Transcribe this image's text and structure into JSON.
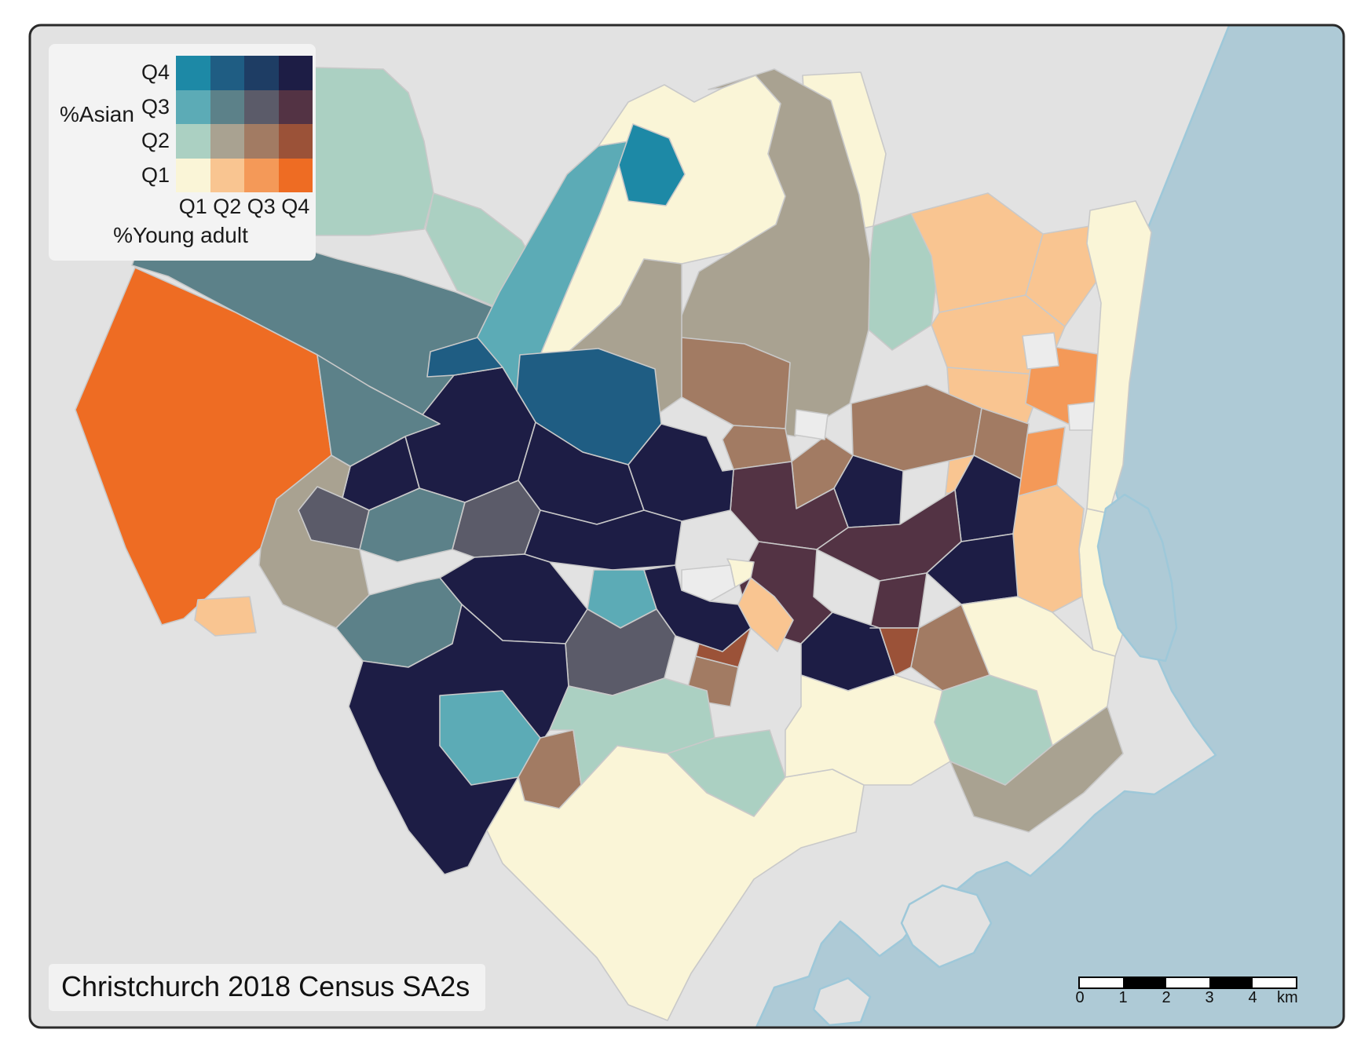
{
  "title": "Christchurch 2018 Census SA2s",
  "legend": {
    "y_axis_label": "%Asian",
    "x_axis_label": "%Young adult",
    "row_labels": [
      "Q4",
      "Q3",
      "Q2",
      "Q1"
    ],
    "col_labels": [
      "Q1",
      "Q2",
      "Q3",
      "Q4"
    ],
    "matrix": [
      [
        "#1d89a6",
        "#1f5d83",
        "#1e3d64",
        "#1d1d45"
      ],
      [
        "#5cabb6",
        "#5c8189",
        "#5b5b69",
        "#533344"
      ],
      [
        "#abd0c2",
        "#a9a291",
        "#a27b63",
        "#9b5238"
      ],
      [
        "#faf5d7",
        "#f9c591",
        "#f49958",
        "#ee6c23"
      ]
    ]
  },
  "scalebar": {
    "tick_labels": [
      "0",
      "1",
      "2",
      "3",
      "4"
    ],
    "unit": "km",
    "segments": [
      "#ffffff",
      "#000000",
      "#ffffff",
      "#000000",
      "#ffffff"
    ]
  },
  "map": {
    "page_bg": "#ffffff",
    "land_color": "#e2e2e2",
    "water_color": "#aecad6",
    "water_edge_color": "#9ec8d9",
    "region_border_color": "#c9c9c9",
    "na_color": "#ececec",
    "panel_edge_color": "#2a2a2a",
    "class_colors": {
      "q1q1": "#faf5d7",
      "q1q2": "#f9c591",
      "q1q3": "#f49958",
      "q1q4": "#ee6c23",
      "q2q1": "#abd0c2",
      "q2q2": "#a9a291",
      "q2q3": "#a27b63",
      "q2q4": "#9b5238",
      "q3q1": "#5cabb6",
      "q3q2": "#5c8189",
      "q3q3": "#5b5b69",
      "q3q4": "#533344",
      "q4q1": "#1d89a6",
      "q4q2": "#1f5d83",
      "q4q3": "#1e3d64",
      "q4q4": "#1d1d45",
      "na": "#ececec"
    },
    "water_shapes": {
      "ocean_and_harbour": "1566,30 1506,180 1462,290 1428,400 1405,500 1407,580 1425,640 1440,700 1452,760 1470,830 1492,880 1520,925 1548,962 1520,980 1470,1012 1432,1008 1394,1038 1352,1080 1312,1116 1282,1098 1244,1112 1210,1140 1176,1162 1150,1196 1120,1218 1092,1192 1070,1174 1046,1202 1030,1244 986,1258 962,1311 1713,1311 1713,30",
      "estuary": "1408,648 1432,630 1462,648 1480,690 1492,742 1498,800 1484,842 1452,836 1424,800 1406,744 1398,696"
    },
    "islands": [
      "1158,1152 1200,1128 1244,1140 1262,1176 1240,1214 1196,1232 1162,1204 1148,1176",
      "1044,1260 1080,1246 1108,1270 1096,1302 1056,1306 1036,1286"
    ],
    "regions": [
      {
        "c": "q3q2",
        "p": "168,338 196,262 270,288 350,306 430,330 510,350 580,372 650,400 706,434 688,500 640,542 560,540 470,492 404,452 300,398 214,352"
      },
      {
        "c": "q1q4",
        "p": "96,522 172,341 300,398 404,452 422,580 352,636 332,698 234,788 206,796 160,698 112,566"
      },
      {
        "c": "q1q2",
        "p": "252,764 318,760 326,806 274,810 248,790"
      },
      {
        "c": "q2q1",
        "p": "196,256 176,180 206,112 296,92 402,86 488,88 520,118 540,180 552,246 540,292 470,300 380,300 300,292 240,280"
      },
      {
        "c": "q2q1",
        "p": "552,246 612,266 664,306 698,366 706,432 652,400 582,370 542,292"
      },
      {
        "c": "q3q1",
        "p": "588,470 636,372 682,292 722,222 762,186 800,180 764,272 724,366 688,452 652,508 612,510"
      },
      {
        "c": "q1q1",
        "p": "762,186 800,130 846,108 884,130 920,112 962,96 994,132 978,196 1000,250 988,286 930,322 868,336 820,330 790,388 756,420 724,448 688,452 724,366 764,272 800,180"
      },
      {
        "c": "q4q1",
        "p": "806,158 852,176 872,222 848,262 800,256 788,210"
      },
      {
        "c": "q1q1",
        "p": "1022,96 1096,92 1128,196 1112,288 1056,300 1028,206"
      },
      {
        "c": "q2q1",
        "p": "1112,288 1160,272 1196,326 1186,414 1136,446 1106,420 1108,330"
      },
      {
        "c": "q2q2",
        "p": "902,114 986,88 1058,128 1094,248 1108,330 1106,420 1082,514 1012,556 934,542 868,506 856,432 890,346 988,286 1000,250 978,196 994,132 962,96 920,112"
      },
      {
        "c": "q2q2",
        "p": "724,448 756,420 790,388 820,330 868,336 868,506 820,540 762,536 716,498"
      },
      {
        "c": "q1q2",
        "p": "1160,272 1258,246 1328,298 1306,376 1196,398 1186,326"
      },
      {
        "c": "q1q2",
        "p": "1196,398 1306,376 1356,416 1330,478 1206,468 1186,414"
      },
      {
        "c": "q1q2",
        "p": "1206,468 1330,478 1302,556 1212,556"
      },
      {
        "c": "q1q2",
        "p": "1212,556 1302,556 1282,636 1204,628"
      },
      {
        "c": "q1q2",
        "p": "1328,298 1388,288 1398,356 1356,416 1306,376"
      },
      {
        "c": "q1q3",
        "p": "1330,440 1404,452 1428,520 1360,540 1306,514 1312,470"
      },
      {
        "c": "q1q3",
        "p": "1288,556 1356,544 1346,618 1282,636"
      },
      {
        "c": "na",
        "p": "1302,428 1342,424 1348,466 1308,470"
      },
      {
        "c": "na",
        "p": "1360,516 1396,512 1392,548 1362,548"
      },
      {
        "c": "q1q1",
        "p": "1388,268 1446,256 1466,296 1452,390 1438,488 1430,592 1412,654 1384,648 1390,560 1396,478 1402,386 1384,310"
      },
      {
        "c": "q1q1",
        "p": "1384,648 1412,654 1420,720 1436,788 1420,836 1392,828 1378,760 1374,700"
      },
      {
        "c": "q1q2",
        "p": "1204,628 1282,636 1346,618 1380,648 1374,700 1378,760 1340,780 1280,760 1220,720 1196,676"
      },
      {
        "c": "q2q3",
        "p": "868,430 948,438 1006,462 1000,546 934,542 868,506"
      },
      {
        "c": "q2q3",
        "p": "1084,514 1180,490 1250,520 1240,580 1150,600 1086,580"
      },
      {
        "c": "q2q3",
        "p": "1250,520 1310,540 1300,610 1240,580"
      },
      {
        "c": "q4q4",
        "p": "1086,580 1150,600 1146,668 1080,672 1062,622"
      },
      {
        "c": "q4q4",
        "p": "1240,580 1300,610 1290,680 1224,690 1216,624"
      },
      {
        "c": "q2q3",
        "p": "1050,556 1086,580 1062,622 1014,648 1008,588"
      },
      {
        "c": "q2q3",
        "p": "934,542 1000,546 1008,588 934,598 920,560"
      },
      {
        "c": "q3q4",
        "p": "934,598 1008,588 1014,648 1062,622 1080,672 1040,700 966,690 930,650"
      },
      {
        "c": "q3q4",
        "p": "966,690 1040,700 1036,760 1060,780 1020,820 956,800 940,740"
      },
      {
        "c": "q3q4",
        "p": "1080,672 1146,668 1216,624 1224,690 1180,730 1120,740 1040,700"
      },
      {
        "c": "q3q4",
        "p": "1120,740 1180,730 1170,800 1108,800"
      },
      {
        "c": "q4q4",
        "p": "1224,690 1290,680 1296,760 1224,770 1180,730"
      },
      {
        "c": "q4q4",
        "p": "1020,820 1060,780 1120,800 1140,860 1080,880 1020,860"
      },
      {
        "c": "q2q4",
        "p": "900,780 956,800 940,850 886,836"
      },
      {
        "c": "q2q4",
        "p": "1108,800 1170,800 1160,850 1140,860 1120,800"
      },
      {
        "c": "q2q3",
        "p": "1160,850 1170,800 1224,770 1280,790 1260,860 1200,880"
      },
      {
        "c": "q2q3",
        "p": "886,836 940,850 930,900 872,890"
      },
      {
        "c": "q4q2",
        "p": "662,452 762,444 834,470 842,540 800,592 742,576 682,538 658,498"
      },
      {
        "c": "q4q4",
        "p": "516,556 578,478 640,468 658,498 682,538 660,612 592,640 534,622"
      },
      {
        "c": "q4q2",
        "p": "548,448 608,430 640,468 578,478 544,480"
      },
      {
        "c": "q4q4",
        "p": "446,594 516,556 534,622 470,650 436,634"
      },
      {
        "c": "q3q3",
        "p": "404,620 446,594 436,634 470,650 458,700 396,688 380,650"
      },
      {
        "c": "q3q2",
        "p": "470,650 534,622 592,640 576,700 506,716 458,700"
      },
      {
        "c": "q3q3",
        "p": "592,640 660,612 688,650 668,706 604,710 576,700"
      },
      {
        "c": "q4q4",
        "p": "682,538 742,576 800,592 820,650 760,668 688,650 660,612"
      },
      {
        "c": "q4q4",
        "p": "842,540 900,556 920,600 934,598 930,650 868,664 820,650 800,592"
      },
      {
        "c": "q4q4",
        "p": "688,650 760,668 820,650 868,664 860,720 780,726 700,716 668,706"
      },
      {
        "c": "q3q1",
        "p": "756,726 820,726 836,776 790,800 748,776"
      },
      {
        "c": "q4q4",
        "p": "604,710 668,706 700,716 748,776 720,820 640,816 588,770 560,736"
      },
      {
        "c": "na",
        "p": "868,726 930,720 936,748 904,766 868,752"
      },
      {
        "c": "q1q1",
        "p": "926,712 960,716 956,736 936,748 930,720"
      },
      {
        "c": "q4q4",
        "p": "860,720 868,752 904,766 940,770 956,800 920,830 860,810 836,776 820,726"
      },
      {
        "c": "q1q2",
        "p": "956,736 986,760 1010,790 990,830 956,800 940,770"
      },
      {
        "c": "q3q3",
        "p": "720,820 748,776 790,800 836,776 860,810 846,864 780,886 724,874"
      },
      {
        "c": "q3q2",
        "p": "428,800 470,758 530,742 560,736 588,770 576,820 520,850 462,842"
      },
      {
        "c": "q2q2",
        "p": "332,698 352,636 422,580 446,594 436,634 404,620 380,650 396,688 458,700 470,758 428,800 360,770 330,720"
      },
      {
        "c": "q3q2",
        "p": "404,452 470,492 560,540 516,556 446,594 422,580"
      },
      {
        "c": "q4q4",
        "p": "462,842 520,850 576,820 588,770 640,816 720,820 724,874 700,930 660,990 620,1058 596,1104 566,1114 520,1058 480,980 444,900"
      },
      {
        "c": "q3q1",
        "p": "560,886 640,880 688,940 660,990 600,1000 560,950"
      },
      {
        "c": "q2q3",
        "p": "688,940 730,930 740,1000 712,1030 668,1020 660,990"
      },
      {
        "c": "q2q1",
        "p": "724,874 780,886 846,864 900,880 910,940 850,960 786,950 740,1000 730,930 700,930"
      },
      {
        "c": "q2q1",
        "p": "910,940 980,930 1000,990 960,1040 900,1010 850,960"
      },
      {
        "c": "q2q1",
        "p": "1200,880 1260,860 1320,880 1340,950 1280,1000 1210,970 1190,920"
      },
      {
        "c": "q1q1",
        "p": "620,1058 660,990 668,1020 712,1030 740,1000 786,950 850,960 900,1010 960,1040 1000,990 1060,980 1100,1000 1090,1060 1020,1080 960,1120 920,1180 880,1240 850,1300 800,1280 760,1220 700,1160 640,1100"
      },
      {
        "c": "q1q1",
        "p": "1020,860 1080,880 1140,860 1200,880 1190,920 1210,970 1160,1000 1100,1000 1060,980 1000,990 1000,930 1020,900"
      },
      {
        "c": "q1q1",
        "p": "1296,760 1340,780 1392,828 1420,836 1410,900 1340,950 1320,880 1260,860 1224,770"
      },
      {
        "c": "q2q2",
        "p": "1210,970 1280,1000 1340,950 1410,900 1430,960 1380,1010 1310,1060 1240,1040"
      },
      {
        "c": "na",
        "p": "1014,522 1054,528 1050,560 1012,554"
      }
    ]
  }
}
